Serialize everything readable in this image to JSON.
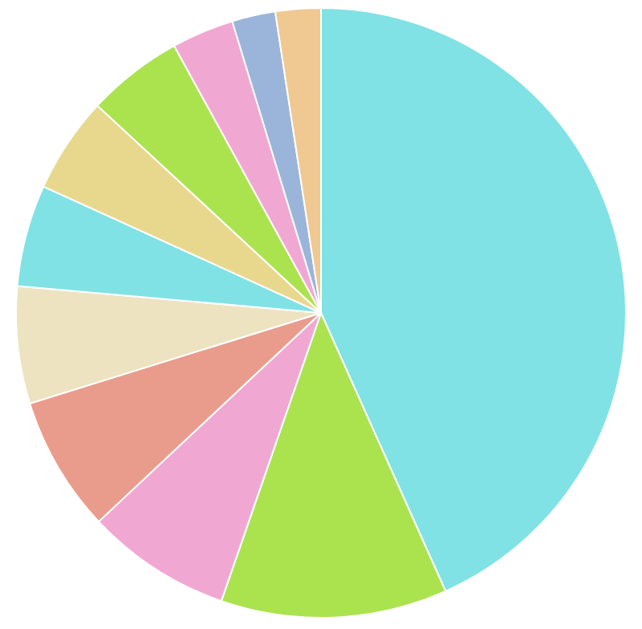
{
  "chart_data": {
    "type": "pie",
    "categories": [
      null,
      null,
      null,
      null,
      null,
      null,
      null,
      null,
      null,
      null,
      null
    ],
    "values": [
      43.3,
      12,
      7.7,
      7.2,
      6.2,
      5.4,
      5.1,
      5.1,
      3.3,
      2.3,
      2.4
    ],
    "colors": [
      "#80e2e4",
      "#abe34f",
      "#f0a8d3",
      "#ea9c8c",
      "#ede3c0",
      "#80e2e4",
      "#e8d88e",
      "#abe34f",
      "#f0a8d3",
      "#9bb5da",
      "#f0c892"
    ]
  }
}
